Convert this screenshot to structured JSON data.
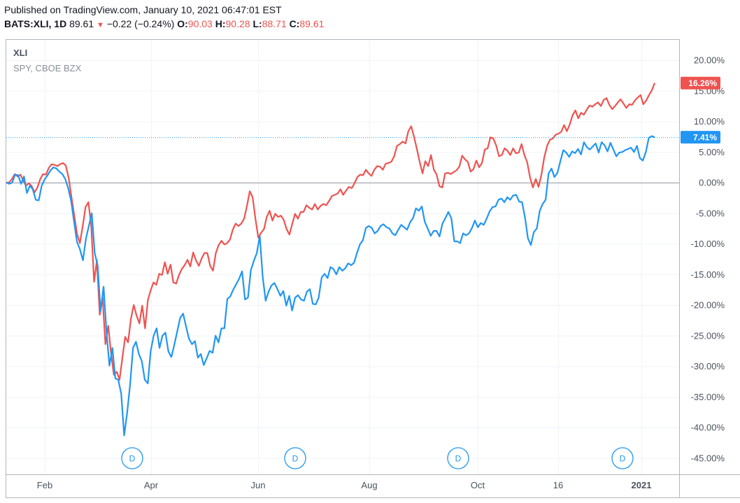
{
  "header": {
    "published": "Published on TradingView.com, January 10, 2021 06:47:01 EST",
    "symbol": "BATS:XLI, 1D",
    "last": "89.61",
    "change": "−0.22 (−0.24%)",
    "o_label": "O:",
    "o": "90.03",
    "h_label": "H:",
    "h": "90.28",
    "l_label": "L:",
    "l": "88.71",
    "c_label": "C:",
    "c": "89.61",
    "arrow": "▼"
  },
  "legend": {
    "main": "XLI",
    "compare": "SPY, CBOE BZX"
  },
  "colors": {
    "xli": "#2196f3",
    "spy": "#ef5350",
    "grid": "#f0f3fa",
    "axis": "#b2b5be"
  },
  "chart_data": {
    "type": "line",
    "y_unit": "percent",
    "ylim": [
      -47,
      22
    ],
    "y_ticks": [
      "20.00%",
      "15.00%",
      "10.00%",
      "5.00%",
      "0.00%",
      "-5.00%",
      "-10.00%",
      "-15.00%",
      "-20.00%",
      "-25.00%",
      "-30.00%",
      "-35.00%",
      "-40.00%",
      "-45.00%"
    ],
    "x_labels": [
      "Feb",
      "Apr",
      "Jun",
      "Aug",
      "Oct",
      "16",
      "2021"
    ],
    "dividend_marker": "D",
    "series": [
      {
        "name": "XLI",
        "last_label": "7.41%",
        "values": [
          0,
          -0.2,
          0,
          1.3,
          1.2,
          -0.2,
          1,
          -1.7,
          -0.5,
          -1.1,
          -2.8,
          -2.9,
          -0.5,
          0.5,
          1.2,
          2,
          2.5,
          2.3,
          1.8,
          1.4,
          0.6,
          -0.9,
          -3,
          -6.4,
          -9.7,
          -10.9,
          -12.7,
          -9.2,
          -7.1,
          -5,
          -11.5,
          -13.5,
          -21,
          -17,
          -24.5,
          -29.9,
          -27,
          -32,
          -32.2,
          -34.5,
          -41.3,
          -37.6,
          -33,
          -27,
          -26,
          -28,
          -29.2,
          -32.2,
          -32.8,
          -27.5,
          -25,
          -23.8,
          -27,
          -25,
          -24.5,
          -27.6,
          -28.5,
          -26.5,
          -24.3,
          -22.1,
          -21.4,
          -23.5,
          -25.5,
          -26.4,
          -25.9,
          -28.6,
          -28,
          -29.8,
          -28.7,
          -27.5,
          -27.8,
          -25,
          -26.1,
          -23.8,
          -23.8,
          -19,
          -18.6,
          -17.5,
          -16.6,
          -15.7,
          -14.5,
          -19.1,
          -18.8,
          -14.3,
          -12.8,
          -11.5,
          -8.7,
          -15.4,
          -19.3,
          -17.8,
          -16.8,
          -16.4,
          -17.4,
          -18.5,
          -17.7,
          -20.1,
          -18.5,
          -20.9,
          -18.8,
          -18.4,
          -19.1,
          -19.3,
          -17.8,
          -17.4,
          -19.8,
          -19.9,
          -18.8,
          -15.5,
          -14.9,
          -15.6,
          -13.8,
          -14.1,
          -15,
          -13.8,
          -14.4,
          -14,
          -13.2,
          -13.5,
          -13.1,
          -11.5,
          -10.1,
          -9.4,
          -7.4,
          -7.1,
          -7.4,
          -8.3,
          -7.9,
          -7.1,
          -6.8,
          -7.3,
          -7.5,
          -8.3,
          -8.6,
          -7.7,
          -6.9,
          -7.3,
          -7.7,
          -6.5,
          -5.8,
          -4.2,
          -4.6,
          -3.9,
          -6.4,
          -7.5,
          -8.7,
          -7.9,
          -7.9,
          -8.8,
          -6.7,
          -5.8,
          -4.8,
          -5.8,
          -9.6,
          -9.6,
          -9.9,
          -8.3,
          -8.6,
          -8.3,
          -7.4,
          -6.2,
          -7.3,
          -6.6,
          -6.9,
          -5.9,
          -4.7,
          -4,
          -3.9,
          -2.8,
          -2.6,
          -3.2,
          -2.4,
          -2.8,
          -2.1,
          -2,
          -3.1,
          -3.2,
          -5.7,
          -9.1,
          -10.2,
          -8.1,
          -7.5,
          -4.6,
          -3.5,
          -2.8,
          1.5,
          2.3,
          0.9,
          1.6,
          3.5,
          5.3,
          4.9,
          4.2,
          5.1,
          4.8,
          5.5,
          4.6,
          6.6,
          5.8,
          5.4,
          5.9,
          6.4,
          4.9,
          6.6,
          6.1,
          5.1,
          6.5,
          5.4,
          4.3,
          4.9,
          5,
          5.3,
          5.5,
          5.7,
          5,
          6,
          4,
          3.6,
          5,
          7.3,
          7.6,
          7.41
        ]
      },
      {
        "name": "SPY",
        "last_label": "16.26%",
        "values": [
          0,
          0,
          0.6,
          1.4,
          1.0,
          1.3,
          0.3,
          -0.5,
          -0.1,
          -0.6,
          -1.6,
          -0.8,
          0.6,
          1.4,
          1.3,
          2.4,
          3,
          2.9,
          2.7,
          3.0,
          3.2,
          2.8,
          0.8,
          -2.3,
          -5.4,
          -8.4,
          -9.9,
          -7.1,
          -4.0,
          -3.2,
          -7.0,
          -16.2,
          -12.7,
          -21.6,
          -18.7,
          -26.4,
          -23.4,
          -27.9,
          -31.4,
          -30.9,
          -32.2,
          -28.6,
          -25.2,
          -26.1,
          -22.3,
          -20,
          -21.7,
          -23,
          -20.1,
          -23.8,
          -19.2,
          -17.6,
          -16.3,
          -16.7,
          -14.9,
          -15.1,
          -13,
          -14.9,
          -13.4,
          -16.3,
          -16.5,
          -15.1,
          -14.1,
          -13.5,
          -12.6,
          -13.7,
          -11.4,
          -12.7,
          -13.6,
          -12.4,
          -11.5,
          -11.5,
          -13.6,
          -14.4,
          -11.5,
          -10.2,
          -9.5,
          -10.1,
          -9.9,
          -9.3,
          -7.7,
          -6.7,
          -7.1,
          -6.7,
          -5.9,
          -3.8,
          -1.4,
          -2.4,
          -5.9,
          -9,
          -8.2,
          -7.6,
          -5.6,
          -4.6,
          -6.2,
          -5.1,
          -5.6,
          -5.4,
          -6.1,
          -7.6,
          -8.5,
          -6.7,
          -5.1,
          -5.9,
          -4.8,
          -4.8,
          -3.7,
          -4.1,
          -4.4,
          -3.5,
          -4.4,
          -3.8,
          -3.5,
          -3.7,
          -3,
          -2.2,
          -2,
          -1.8,
          -1.1,
          -2,
          -1.3,
          -0.7,
          -0.9,
          -0.1,
          0.9,
          1.3,
          1.2,
          2.1,
          1.5,
          1.1,
          2.1,
          2.7,
          2.6,
          2.1,
          3.1,
          3.2,
          3.4,
          4.3,
          6.0,
          6.3,
          6.7,
          6.4,
          8.4,
          9.2,
          7.5,
          5.5,
          3.4,
          1.5,
          3.5,
          2.7,
          4.5,
          2.1,
          1.3,
          -0.6,
          -0.8,
          1.5,
          1.6,
          1.4,
          1.7,
          2,
          2.6,
          4.4,
          3.8,
          3.4,
          1.8,
          2.2,
          3.6,
          2.5,
          3.2,
          5.4,
          5.6,
          7.4,
          7.2,
          6.1,
          4.3,
          4.5,
          5.6,
          5.2,
          4.5,
          5.6,
          4.8,
          4.9,
          6.3,
          4.5,
          3.3,
          0.8,
          -0.8,
          0.6,
          -0.7,
          1.3,
          4.1,
          6.0,
          7.0,
          7.2,
          7.8,
          8.0,
          8.3,
          9.4,
          8.4,
          9.5,
          11.0,
          11.8,
          10.5,
          11.4,
          11.1,
          11.9,
          12.6,
          12.4,
          12.8,
          13.1,
          12.5,
          13.5,
          13.8,
          12.7,
          12,
          12.5,
          13.1,
          13.6,
          12.9,
          12.2,
          12.8,
          12.7,
          13.4,
          13.9,
          14.3,
          12.8,
          13.4,
          14.3,
          15.1,
          16.26
        ]
      }
    ]
  }
}
